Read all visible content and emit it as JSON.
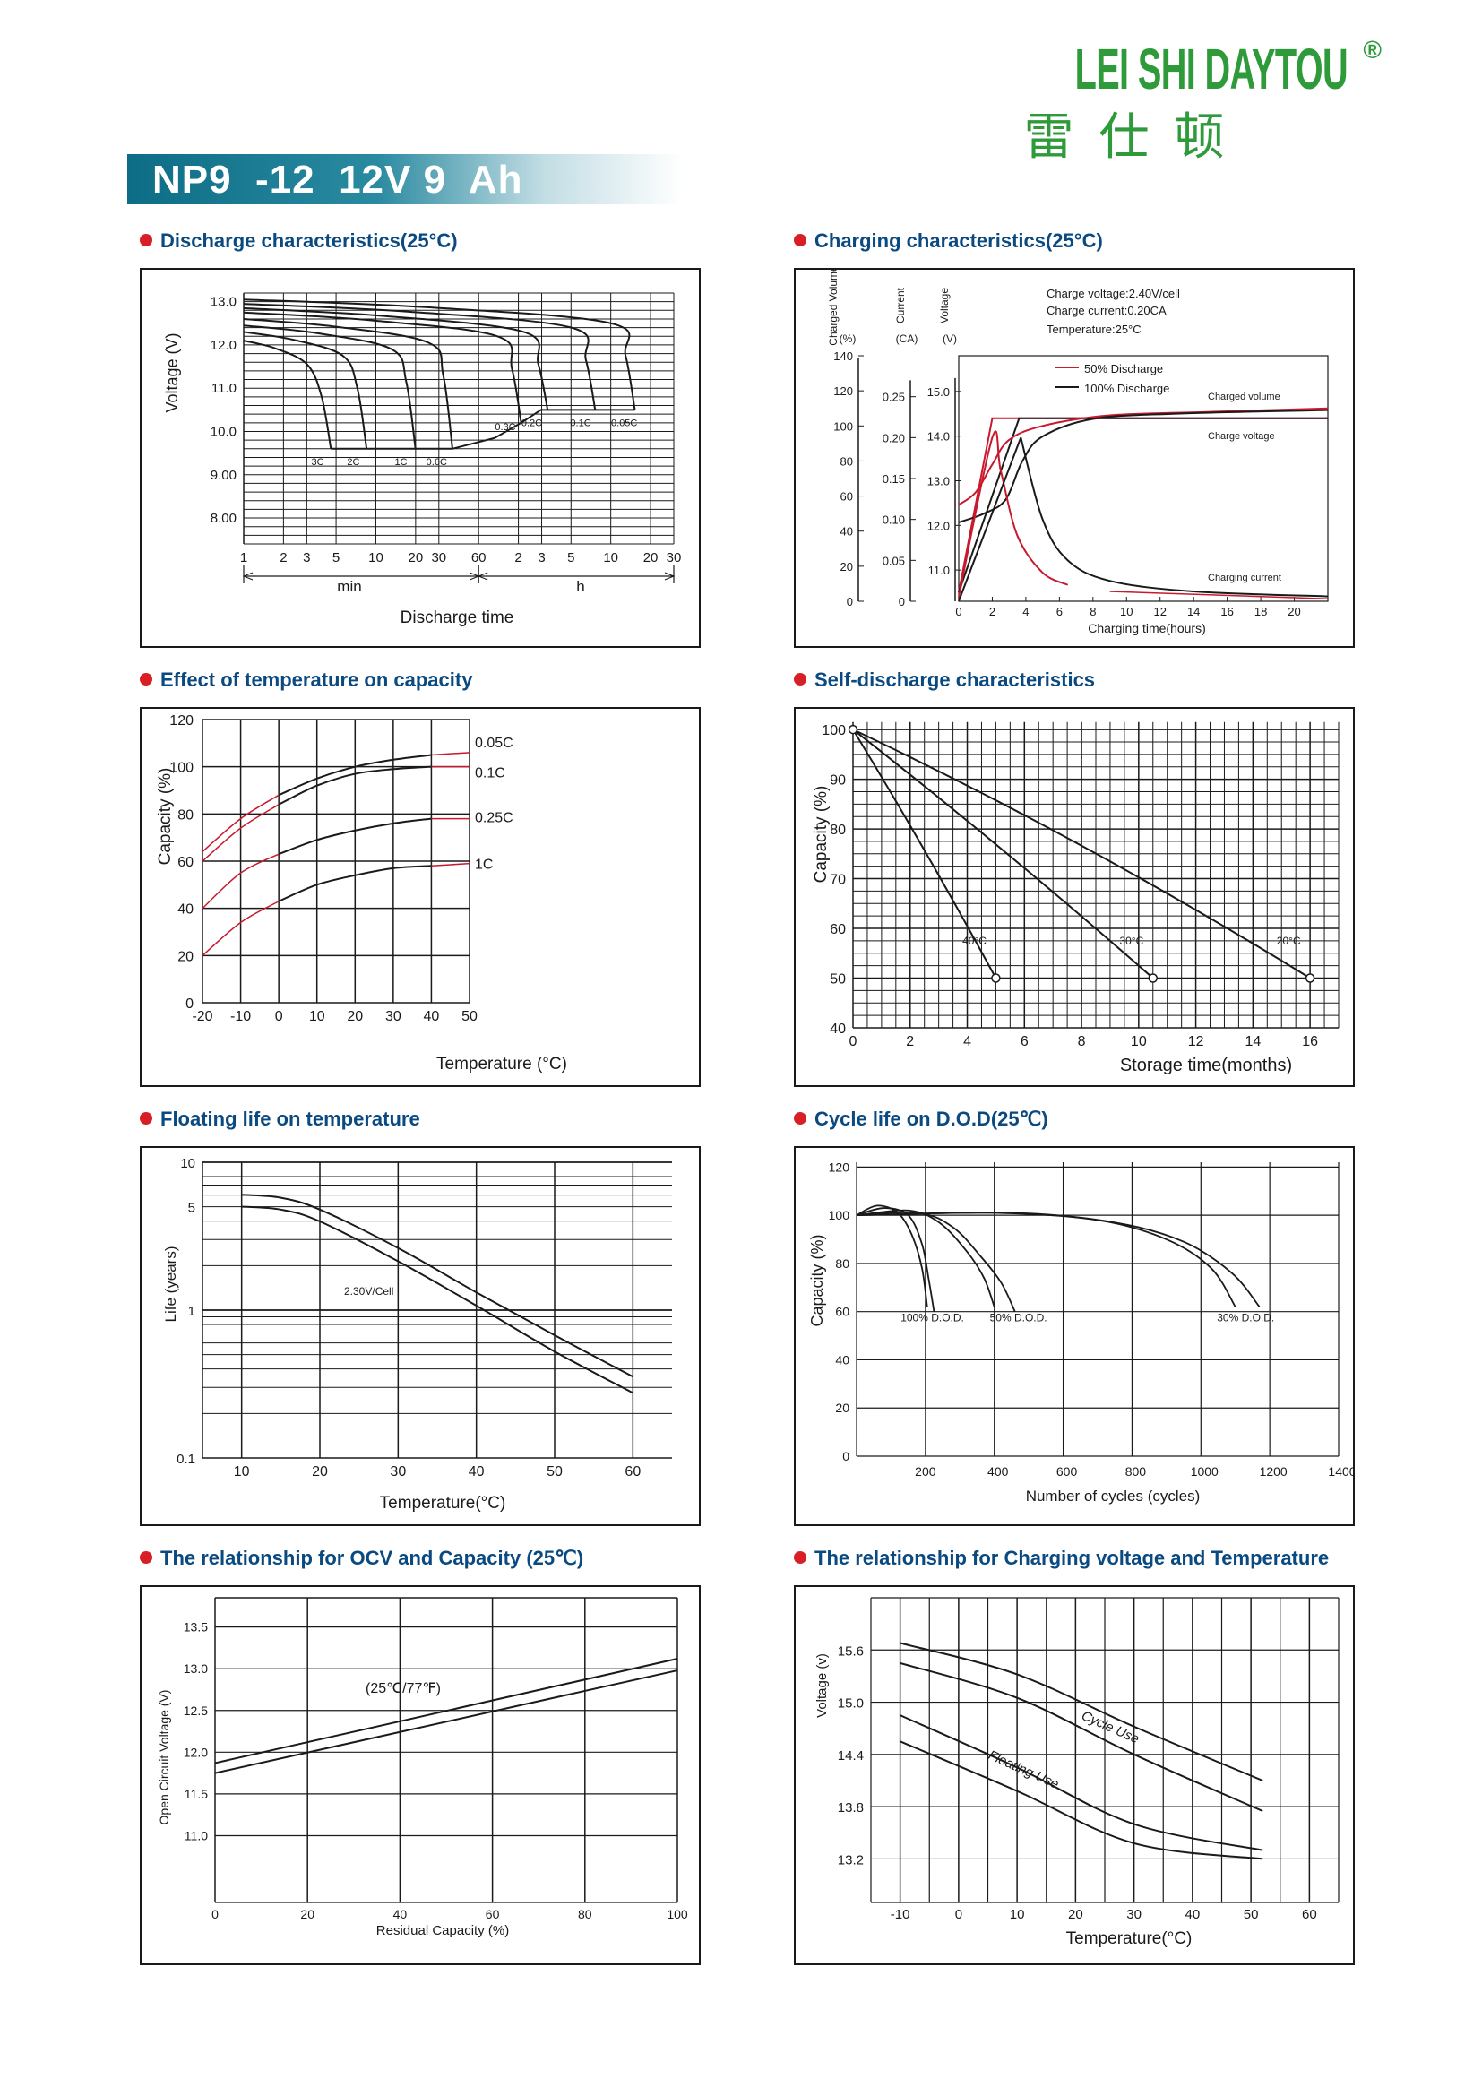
{
  "brand": {
    "name": "LEI SHI DAYTOU",
    "registered": "®",
    "chinese": "雷仕顿",
    "color": "#2e9a3a"
  },
  "model": {
    "title": "NP9  -12  12V 9  Ah",
    "banner_color": "#0d6d86"
  },
  "colors": {
    "title_text": "#0a4a80",
    "bullet": "#d81f26",
    "accent_red": "#c8192e",
    "line": "#1a1a1a"
  },
  "panels": {
    "discharge": {
      "title": "Discharge characteristics",
      "title_suffix": "(25°C)",
      "chart_data": {
        "type": "line",
        "ylabel": "Voltage (V)",
        "xlabel": "Discharge time",
        "yticks": [
          "13.0",
          "12.0",
          "11.0",
          "10.0",
          "9.00",
          "8.00"
        ],
        "xticks": [
          "1",
          "2",
          "3",
          "5",
          "10",
          "20",
          "30",
          "60",
          "2",
          "3",
          "5",
          "10",
          "20",
          "30"
        ],
        "unit_labels": [
          "min",
          "h"
        ],
        "series": [
          {
            "name": "3C",
            "end_v": 9.6
          },
          {
            "name": "2C",
            "end_v": 9.6
          },
          {
            "name": "1C",
            "end_v": 9.6
          },
          {
            "name": "0.6C",
            "end_v": 9.6
          },
          {
            "name": "0.3C",
            "end_v": 10.2
          },
          {
            "name": "0.2C",
            "end_v": 10.5
          },
          {
            "name": "0.1C",
            "end_v": 10.5
          },
          {
            "name": "0.05C",
            "end_v": 10.5
          }
        ]
      }
    },
    "charging": {
      "title": "Charging characteristics",
      "title_suffix": "(25°C)",
      "chart_data": {
        "type": "line",
        "axis_heads": [
          "Charged Volume",
          "Current",
          "Voltage"
        ],
        "axis_units": [
          "(%)",
          "(CA)",
          "(V)"
        ],
        "notes": [
          "Charge voltage:2.40V/cell",
          "Charge current:0.20CA",
          "Temperature:25°C"
        ],
        "legend": [
          "50% Discharge",
          "100% Discharge"
        ],
        "curve_labels": [
          "Charged volume",
          "Charge voltage",
          "Charging current"
        ],
        "xlabel": "Charging time(hours)",
        "xticks": [
          "0",
          "2",
          "4",
          "6",
          "8",
          "10",
          "12",
          "14",
          "16",
          "18",
          "20"
        ],
        "y_vol_ticks": [
          "140",
          "120",
          "100",
          "80",
          "60",
          "40",
          "20",
          "0"
        ],
        "y_cur_ticks": [
          "0.25",
          "0.20",
          "0.15",
          "0.10",
          "0.05",
          "0"
        ],
        "y_volt_ticks": [
          "15.0",
          "14.0",
          "13.0",
          "12.0",
          "11.0"
        ]
      }
    },
    "temp_capacity": {
      "title": "Effect of temperature on capacity",
      "chart_data": {
        "type": "line",
        "ylabel": "Capacity (%)",
        "xlabel": "Temperature (°C)",
        "x": [
          -20,
          -10,
          0,
          10,
          20,
          30,
          40,
          50
        ],
        "xticks": [
          "-20",
          "-10",
          "0",
          "10",
          "20",
          "30",
          "40",
          "50"
        ],
        "yticks": [
          "120",
          "100",
          "80",
          "60",
          "40",
          "20",
          "0"
        ],
        "ylim": [
          0,
          120
        ],
        "series": [
          {
            "name": "0.05C",
            "values": [
              64,
              78,
              88,
              95,
              100,
              103,
              105,
              106
            ]
          },
          {
            "name": "0.1C",
            "values": [
              60,
              74,
              84,
              92,
              97,
              99,
              100,
              100
            ]
          },
          {
            "name": "0.25C",
            "values": [
              40,
              55,
              63,
              69,
              73,
              76,
              78,
              78
            ]
          },
          {
            "name": "1C",
            "values": [
              20,
              34,
              43,
              50,
              54,
              57,
              58,
              59
            ]
          }
        ]
      }
    },
    "self_discharge": {
      "title": "Self-discharge characteristics",
      "chart_data": {
        "type": "line",
        "ylabel": "Capacity (%)",
        "xlabel": "Storage time(months)",
        "xticks": [
          "0",
          "2",
          "4",
          "6",
          "8",
          "10",
          "12",
          "14",
          "16"
        ],
        "yticks": [
          "100",
          "90",
          "80",
          "70",
          "60",
          "50",
          "40"
        ],
        "ylim": [
          40,
          100
        ],
        "series": [
          {
            "name": "40°C",
            "x": [
              0,
              5
            ],
            "values": [
              100,
              50
            ]
          },
          {
            "name": "30°C",
            "x": [
              0,
              10.5
            ],
            "values": [
              100,
              50
            ]
          },
          {
            "name": "20°C",
            "x": [
              0,
              16
            ],
            "values": [
              100,
              50
            ]
          }
        ]
      }
    },
    "floating_life": {
      "title": "Floating life on temperature",
      "chart_data": {
        "type": "line",
        "ylabel": "Life (years)",
        "xlabel": "Temperature(°C)",
        "xticks": [
          "10",
          "20",
          "30",
          "40",
          "50",
          "60"
        ],
        "yticks": [
          "10",
          "5",
          "1",
          "0.1"
        ],
        "annotation": "2.30V/Cell"
      }
    },
    "cycle_life": {
      "title": "Cycle life on D.O.D",
      "title_suffix": "(25℃)",
      "chart_data": {
        "type": "line",
        "ylabel": "Capacity (%)",
        "xlabel": "Number of cycles (cycles)",
        "xticks": [
          "0",
          "200",
          "400",
          "600",
          "800",
          "1000",
          "1200",
          "1400"
        ],
        "yticks": [
          "120",
          "100",
          "80",
          "60",
          "40",
          "20"
        ],
        "series_labels": [
          "100% D.O.D.",
          "50% D.O.D.",
          "30% D.O.D."
        ]
      }
    },
    "ocv": {
      "title": "The relationship  for OCV and Capacity",
      "title_suffix": "(25℃)",
      "chart_data": {
        "type": "line",
        "ylabel": "Open Circuit Voltage (V)",
        "xlabel": "Residual Capacity (%)",
        "xticks": [
          "0",
          "20",
          "40",
          "60",
          "80",
          "100"
        ],
        "yticks": [
          "13.5",
          "13.0",
          "12.5",
          "12.0",
          "11.5",
          "11.0"
        ],
        "annotation": "(25℃/77℉)",
        "series": [
          {
            "x": [
              0,
              100
            ],
            "values": [
              11.75,
              12.98
            ]
          },
          {
            "x": [
              0,
              100
            ],
            "values": [
              11.87,
              13.12
            ]
          }
        ]
      }
    },
    "charge_voltage_temp": {
      "title": "The relationship for Charging voltage and Temperature",
      "chart_data": {
        "type": "line",
        "ylabel": "Voltage (v)",
        "xlabel": "Temperature(°C)",
        "xticks": [
          "-10",
          "0",
          "10",
          "20",
          "30",
          "40",
          "50",
          "60"
        ],
        "yticks": [
          "15.6",
          "15.0",
          "14.4",
          "13.8",
          "13.2"
        ],
        "series_labels": [
          "Cycle Use",
          "Floating Use"
        ]
      }
    }
  }
}
